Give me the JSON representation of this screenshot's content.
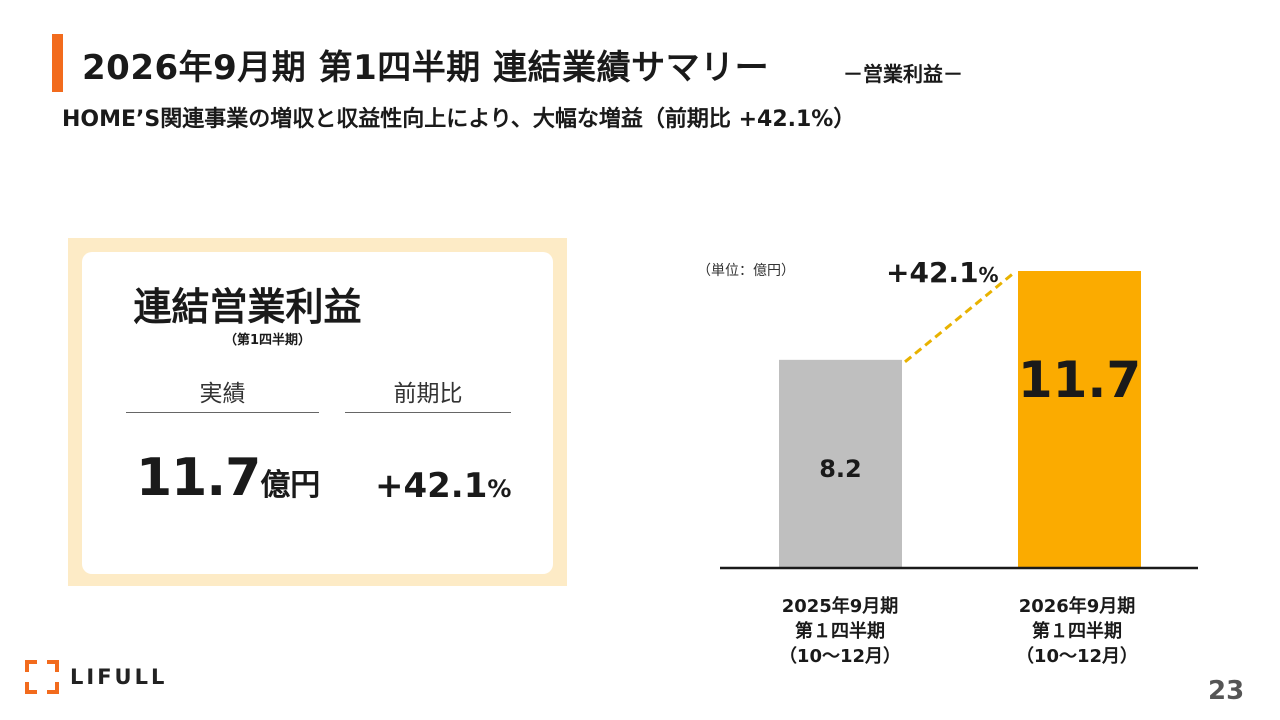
{
  "header": {
    "title": "2026年9月期 第1四半期 連結業績サマリー",
    "section": "－営業利益－",
    "subtitle": "HOME’S関連事業の増収と収益性向上により、大幅な増益（前期比 +42.1%）"
  },
  "kpi": {
    "title": "連結営業利益",
    "period": "（第1四半期）",
    "col_actual": "実績",
    "col_yoy": "前期比",
    "value": "11.7",
    "value_unit": "億円",
    "change": "+42.1",
    "change_unit": "%"
  },
  "chart_data": {
    "type": "bar",
    "unit_note": "（単位：億円）",
    "categories": [
      {
        "line1": "2025年9月期",
        "line2": "第１四半期",
        "line3": "（10～12月）"
      },
      {
        "line1": "2026年9月期",
        "line2": "第１四半期",
        "line3": "（10～12月）"
      }
    ],
    "values": [
      8.2,
      11.7
    ],
    "value_labels": [
      "8.2",
      "11.7"
    ],
    "colors": [
      "#bfbfbf",
      "#fbab00"
    ],
    "growth_label": "+42.1",
    "growth_unit": "%",
    "ylim": [
      0,
      11.7
    ]
  },
  "brand": {
    "name": "LIFULL",
    "accent": "#f26b1d"
  },
  "footer": {
    "page": "23"
  }
}
